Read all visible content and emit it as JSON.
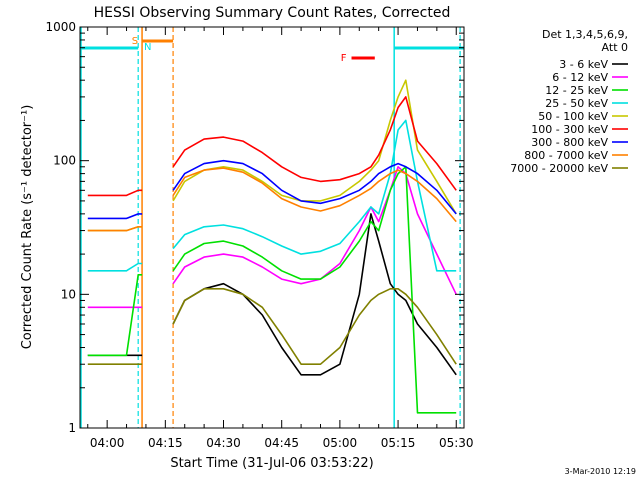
{
  "chart_data": {
    "type": "line",
    "title": "HESSI Observing Summary Count Rates, Corrected",
    "xlabel": "Start Time (31-Jul-06 03:53:22)",
    "ylabel": "Corrected Count Rate (s⁻¹ detector⁻¹)",
    "yscale": "log",
    "ylim": [
      1,
      1000
    ],
    "xlim": [
      "03:53",
      "05:32"
    ],
    "x_ticks": [
      "04:00",
      "04:15",
      "04:30",
      "04:45",
      "05:00",
      "05:15",
      "05:30"
    ],
    "y_ticks": [
      "1",
      "10",
      "100",
      "1000"
    ],
    "legend_header": [
      "Det 1,3,4,5,6,9,",
      "Att 0"
    ],
    "legend_position": "right",
    "footer_date": "3-Mar-2010 12:19",
    "flags": [
      {
        "label": "S",
        "color": "#ff8000",
        "start": "04:09",
        "end": "04:17"
      },
      {
        "label": "N",
        "color": "#00e0e0"
      },
      {
        "label": "F",
        "color": "#ff0000",
        "start": "05:03",
        "end": "05:09"
      }
    ],
    "x": [
      "03:55",
      "04:00",
      "04:05",
      "04:08",
      "04:09",
      "04:17",
      "04:20",
      "04:25",
      "04:30",
      "04:35",
      "04:40",
      "04:45",
      "04:50",
      "04:55",
      "05:00",
      "05:05",
      "05:08",
      "05:10",
      "05:13",
      "05:15",
      "05:17",
      "05:20",
      "05:25",
      "05:30"
    ],
    "series": [
      {
        "name": "3 - 6 keV",
        "color": "#000000",
        "values": [
          3.5,
          3.5,
          3.5,
          3.5,
          3.5,
          6,
          9,
          11,
          12,
          10,
          7,
          4,
          2.5,
          2.5,
          3,
          10,
          40,
          25,
          12,
          10,
          9,
          6,
          4,
          2.5
        ]
      },
      {
        "name": "6 - 12 keV",
        "color": "#ff00ff",
        "values": [
          8,
          8,
          8,
          8,
          8,
          12,
          16,
          19,
          20,
          19,
          16,
          13,
          12,
          13,
          17,
          30,
          45,
          35,
          60,
          90,
          80,
          40,
          20,
          10
        ]
      },
      {
        "name": "12 - 25 keV",
        "color": "#00e000",
        "values": [
          3.5,
          3.5,
          3.5,
          14,
          14,
          15,
          20,
          24,
          25,
          23,
          19,
          15,
          13,
          13,
          16,
          25,
          35,
          30,
          60,
          80,
          90,
          1.3,
          1.3,
          1.3
        ]
      },
      {
        "name": "25 - 50 keV",
        "color": "#00e0e0",
        "values": [
          15,
          15,
          15,
          17,
          17,
          22,
          28,
          32,
          33,
          31,
          27,
          23,
          20,
          21,
          24,
          35,
          45,
          40,
          80,
          170,
          200,
          70,
          15,
          15
        ]
      },
      {
        "name": "50 - 100 keV",
        "color": "#c8c800",
        "values": [
          30,
          30,
          30,
          32,
          32,
          50,
          70,
          85,
          90,
          85,
          70,
          55,
          50,
          50,
          55,
          70,
          85,
          100,
          200,
          300,
          400,
          120,
          70,
          40
        ]
      },
      {
        "name": "100 - 300 keV",
        "color": "#ff0000",
        "values": [
          55,
          55,
          55,
          60,
          60,
          90,
          120,
          145,
          150,
          140,
          115,
          90,
          75,
          70,
          72,
          80,
          90,
          110,
          170,
          250,
          300,
          140,
          95,
          60
        ]
      },
      {
        "name": "300 - 800 keV",
        "color": "#0000ff",
        "values": [
          37,
          37,
          37,
          40,
          40,
          60,
          80,
          95,
          100,
          95,
          80,
          60,
          50,
          48,
          52,
          60,
          70,
          80,
          90,
          95,
          90,
          80,
          60,
          40
        ]
      },
      {
        "name": "800 - 7000 keV",
        "color": "#ff8000",
        "values": [
          30,
          30,
          30,
          32,
          32,
          55,
          75,
          85,
          88,
          82,
          68,
          52,
          45,
          42,
          46,
          55,
          62,
          70,
          80,
          85,
          80,
          70,
          52,
          35
        ]
      },
      {
        "name": "7000 - 20000 keV",
        "color": "#808000",
        "values": [
          3,
          3,
          3,
          3,
          3,
          6,
          9,
          11,
          11,
          10,
          8,
          5,
          3,
          3,
          4,
          7,
          9,
          10,
          11,
          11,
          10,
          8,
          5,
          3
        ]
      }
    ]
  }
}
